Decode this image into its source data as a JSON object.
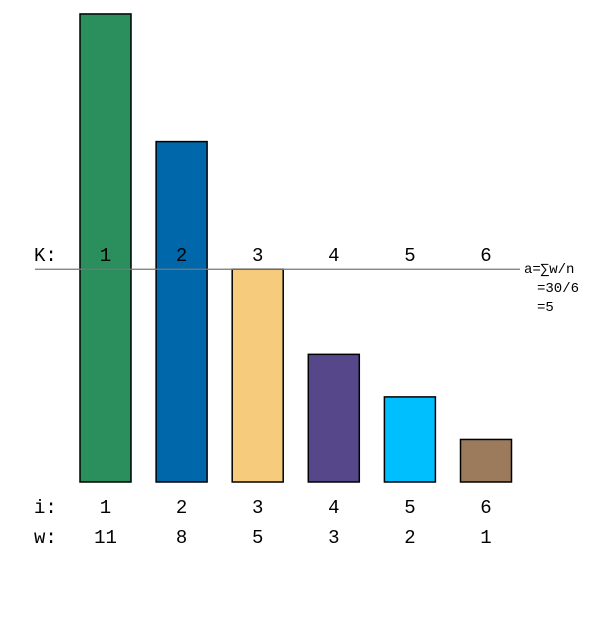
{
  "chart_data": {
    "type": "bar",
    "average_line": 5,
    "bars": [
      {
        "k": "1",
        "i": "1",
        "w": "11",
        "value": 11,
        "color": "#2a8f5c"
      },
      {
        "k": "2",
        "i": "2",
        "w": "8",
        "value": 8,
        "color": "#0068aa"
      },
      {
        "k": "3",
        "i": "3",
        "w": "5",
        "value": 5,
        "color": "#f6cb7b"
      },
      {
        "k": "4",
        "i": "4",
        "w": "3",
        "value": 3,
        "color": "#56478a"
      },
      {
        "k": "5",
        "i": "5",
        "w": "2",
        "value": 2,
        "color": "#00bfff"
      },
      {
        "k": "6",
        "i": "6",
        "w": "1",
        "value": 1,
        "color": "#9c7b5c"
      }
    ]
  },
  "row_labels": {
    "k": "K:",
    "i": "i:",
    "w": "w:"
  },
  "formula": {
    "line1": "a=∑w/n",
    "line2": "=30/6",
    "line3": "=5"
  }
}
